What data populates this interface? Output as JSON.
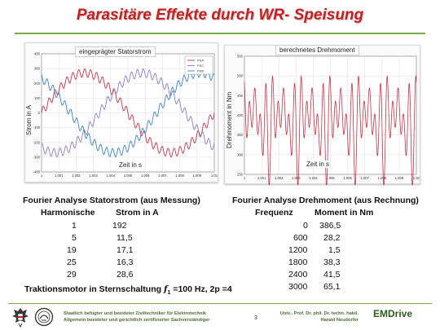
{
  "slide": {
    "title": "Parasitäre Effekte durch WR- Speisung",
    "page_number": "3",
    "colors": {
      "title": "#c62020",
      "accent": "#7aa94a",
      "phase_a": "#c2344a",
      "phase_b": "#8e7bc2",
      "phase_c": "#3b7fc4",
      "torque": "#c2344a"
    }
  },
  "plot_current": {
    "caption": "eingeprägter Statorstrom",
    "ylabel": "Strom in A",
    "xlabel": "Zeit in s",
    "legend": [
      "PSA",
      "PSC",
      "PSB"
    ]
  },
  "plot_torque": {
    "caption": "berechnetes Drehmoment",
    "ylabel": "Drehmoment in Nm",
    "xlabel": "Zeit in s"
  },
  "table_current": {
    "heading": "Fourier Analyse Statorstrom (aus Messung)",
    "col_h": "Harmonische",
    "col_v": "Strom in A",
    "rows": [
      {
        "h": "1",
        "v": "192"
      },
      {
        "h": "5",
        "v": "11,5"
      },
      {
        "h": "19",
        "v": "17,1"
      },
      {
        "h": "25",
        "v": "16,3"
      },
      {
        "h": "29",
        "h_": "",
        "v": "28,6"
      }
    ]
  },
  "table_torque": {
    "heading": "Fourier Analyse Drehmoment (aus Rechnung)",
    "col_f": "Frequenz",
    "col_m": "Moment in Nm",
    "rows": [
      {
        "f": "0",
        "m": "386,5"
      },
      {
        "f": "600",
        "m": "28,2"
      },
      {
        "f": "1200",
        "m": "1,5"
      },
      {
        "f": "1800",
        "m": "38,3"
      },
      {
        "f": "2400",
        "m": "41,5"
      },
      {
        "f": "3000",
        "m": "65,1"
      }
    ]
  },
  "footnote": {
    "prefix": "Traktionsmotor in Sternschaltung ",
    "symbol": "f",
    "subscript": "1",
    "suffix": " =100 Hz, 2p =4"
  },
  "footer": {
    "left_line1": "Staatlich befugter und beeideter Ziviltechniker für Elektrotechnik",
    "left_line2": "Allgemein beeideter und gerichtlich zertifizierter Sachverständiger",
    "right_line1": "Univ.- Prof. Dr. phil. Dr. techn. habil.",
    "right_line2": "Harald Neudorfer",
    "brand": "EMDrive"
  },
  "chart_data": [
    {
      "type": "line",
      "title": "eingeprägter Statorstrom",
      "xlabel": "Zeit in s",
      "ylabel": "Strom in A",
      "x_ticks": [
        "1",
        "1.001",
        "1.002",
        "1.003",
        "1.004",
        "1.005",
        "1.006",
        "1.007",
        "1.008",
        "1.009",
        "1.01"
      ],
      "y_ticks": [
        "-400",
        "-300",
        "-200",
        "-100",
        "0",
        "100",
        "200",
        "300",
        "400"
      ],
      "xlim": [
        1.0,
        1.01
      ],
      "ylim": [
        -400,
        400
      ],
      "series": [
        {
          "name": "PSA",
          "amplitude": 270,
          "phase_deg": 0
        },
        {
          "name": "PSC",
          "amplitude": 270,
          "phase_deg": 120
        },
        {
          "name": "PSB",
          "amplitude": 270,
          "phase_deg": 240
        }
      ],
      "fundamental_hz": 100,
      "ripple_harmonic": 29,
      "ripple_amplitude": 28.6,
      "grid": true,
      "legend": "top-right"
    },
    {
      "type": "line",
      "title": "berechnetes Drehmoment",
      "xlabel": "Zeit in s",
      "ylabel": "Drehmoment in Nm",
      "x_ticks": [
        "1",
        "1.001",
        "1.002",
        "1.003",
        "1.004",
        "1.005",
        "1.006",
        "1.007",
        "1.008",
        "1.009",
        "1.01"
      ],
      "y_ticks": [
        "250",
        "300",
        "350",
        "400",
        "450",
        "500",
        "550"
      ],
      "xlim": [
        1.0,
        1.01
      ],
      "ylim": [
        250,
        550
      ],
      "mean": 386.5,
      "ripple_hz": [
        600,
        1800,
        2400,
        3000
      ],
      "ripple_nm": [
        28.2,
        38.3,
        41.5,
        65.1
      ],
      "grid": true,
      "legend": "none"
    }
  ]
}
